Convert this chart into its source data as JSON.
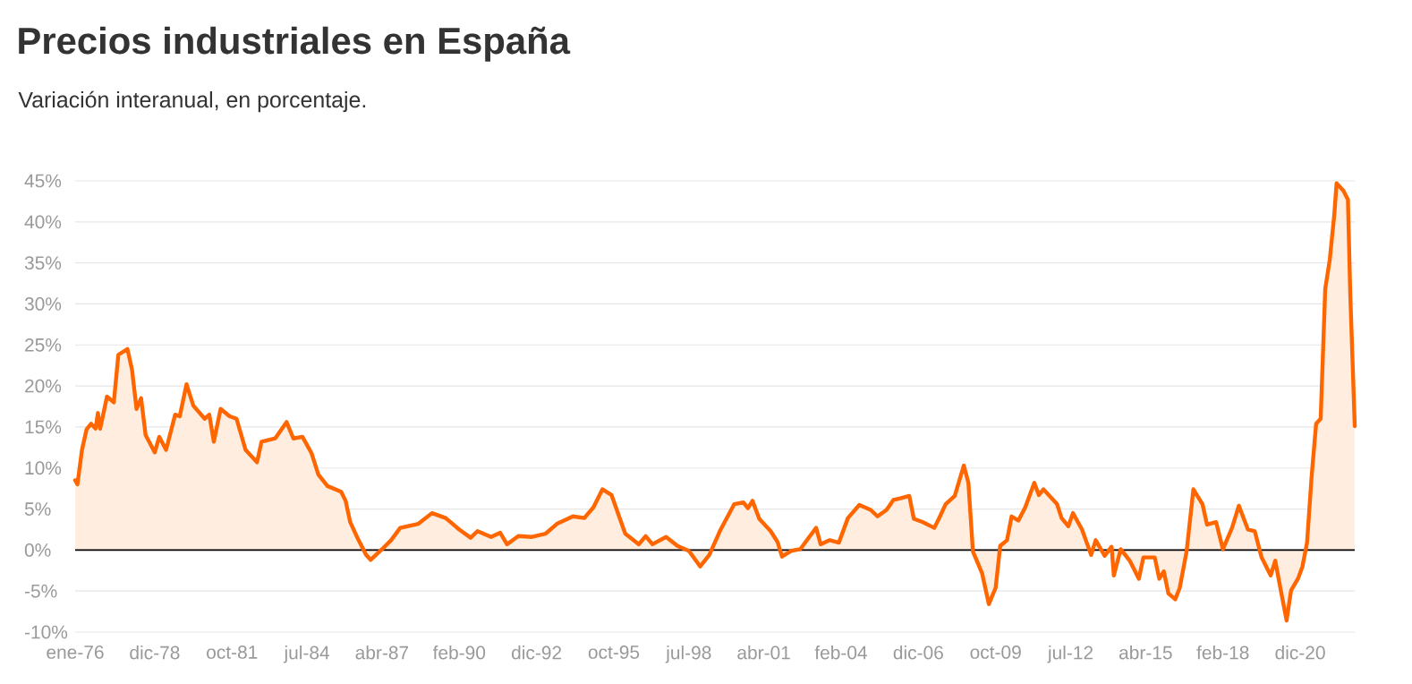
{
  "chart_data": {
    "type": "area",
    "title": "Precios industriales en España",
    "subtitle": "Variación interanual, en porcentaje.",
    "x": [
      "1976-01",
      "1976-02",
      "1976-04",
      "1976-06",
      "1976-08",
      "1976-10",
      "1976-11",
      "1976-12",
      "1977-03",
      "1977-06",
      "1977-08",
      "1977-12",
      "1978-02",
      "1978-04",
      "1978-06",
      "1978-08",
      "1978-12",
      "1979-02",
      "1979-05",
      "1979-09",
      "1979-11",
      "1980-02",
      "1980-05",
      "1980-10",
      "1980-12",
      "1981-02",
      "1981-05",
      "1981-09",
      "1981-12",
      "1982-04",
      "1982-09",
      "1982-11",
      "1983-05",
      "1983-10",
      "1984-01",
      "1984-05",
      "1984-09",
      "1984-12",
      "1985-04",
      "1985-10",
      "1985-12",
      "1986-02",
      "1986-05",
      "1986-09",
      "1986-11",
      "1987-04",
      "1987-08",
      "1987-12",
      "1988-08",
      "1989-02",
      "1989-08",
      "1990-02",
      "1990-07",
      "1990-10",
      "1991-04",
      "1991-08",
      "1991-11",
      "1992-04",
      "1992-10",
      "1993-04",
      "1993-09",
      "1994-04",
      "1994-09",
      "1995-01",
      "1995-05",
      "1995-09",
      "1996-03",
      "1996-09",
      "1996-12",
      "1997-03",
      "1997-09",
      "1998-02",
      "1998-07",
      "1998-12",
      "1999-04",
      "1999-09",
      "2000-03",
      "2000-07",
      "2000-09",
      "2000-11",
      "2001-02",
      "2001-07",
      "2001-10",
      "2001-12",
      "2002-04",
      "2002-08",
      "2002-12",
      "2003-03",
      "2003-05",
      "2003-09",
      "2004-01",
      "2004-05",
      "2004-10",
      "2005-03",
      "2005-06",
      "2005-10",
      "2006-01",
      "2006-04",
      "2006-08",
      "2006-10",
      "2007-02",
      "2007-07",
      "2007-09",
      "2007-12",
      "2008-04",
      "2008-08",
      "2008-10",
      "2008-12",
      "2009-04",
      "2009-07",
      "2009-10",
      "2009-12",
      "2010-03",
      "2010-05",
      "2010-08",
      "2010-11",
      "2011-03",
      "2011-05",
      "2011-07",
      "2012-01",
      "2012-03",
      "2012-06",
      "2012-08",
      "2012-12",
      "2013-04",
      "2013-06",
      "2013-10",
      "2014-01",
      "2014-02",
      "2014-05",
      "2014-09",
      "2015-01",
      "2015-03",
      "2015-08",
      "2015-10",
      "2015-12",
      "2016-02",
      "2016-05",
      "2016-07",
      "2016-10",
      "2017-01",
      "2017-05",
      "2017-07",
      "2017-11",
      "2018-02",
      "2018-06",
      "2018-09",
      "2019-01",
      "2019-04",
      "2019-07",
      "2019-11",
      "2020-01",
      "2020-04",
      "2020-06",
      "2020-08",
      "2020-11",
      "2021-01",
      "2021-03",
      "2021-05",
      "2021-07",
      "2021-09",
      "2021-11",
      "2022-01",
      "2022-03",
      "2022-04",
      "2022-07",
      "2022-09",
      "2022-10",
      "2022-12"
    ],
    "series": [
      {
        "color": "#ff6600",
        "values": [
          8.5,
          8.0,
          12.2,
          14.7,
          15.4,
          14.8,
          16.7,
          14.8,
          18.7,
          18.0,
          23.8,
          24.5,
          22.0,
          17.2,
          18.5,
          14.0,
          11.9,
          13.8,
          12.2,
          16.5,
          16.3,
          20.2,
          17.6,
          16.0,
          16.5,
          13.2,
          17.2,
          16.3,
          16.0,
          12.2,
          10.7,
          13.2,
          13.6,
          15.6,
          13.6,
          13.8,
          11.8,
          9.2,
          7.8,
          7.1,
          6.0,
          3.4,
          1.6,
          -0.6,
          -1.2,
          0.1,
          1.2,
          2.7,
          3.2,
          4.5,
          3.9,
          2.5,
          1.5,
          2.3,
          1.6,
          2.1,
          0.7,
          1.7,
          1.6,
          2.0,
          3.2,
          4.1,
          3.9,
          5.2,
          7.4,
          6.7,
          2.0,
          0.7,
          1.7,
          0.7,
          1.6,
          0.5,
          -0.1,
          -2.0,
          -0.6,
          2.5,
          5.6,
          5.8,
          5.1,
          6.0,
          3.8,
          2.3,
          1.0,
          -0.8,
          -0.1,
          0.1,
          1.6,
          2.7,
          0.7,
          1.2,
          0.9,
          3.9,
          5.5,
          4.9,
          4.1,
          4.9,
          6.1,
          6.3,
          6.6,
          3.8,
          3.4,
          2.7,
          3.8,
          5.6,
          6.6,
          10.3,
          8.2,
          -0.2,
          -2.8,
          -6.6,
          -4.6,
          0.5,
          1.2,
          4.1,
          3.6,
          5.2,
          8.2,
          6.7,
          7.4,
          5.6,
          3.9,
          2.9,
          4.5,
          2.5,
          -0.6,
          1.2,
          -0.7,
          0.4,
          -3.1,
          0.1,
          -1.3,
          -3.5,
          -0.9,
          -0.9,
          -3.5,
          -2.6,
          -5.3,
          -6.0,
          -4.6,
          -0.2,
          7.4,
          5.6,
          3.1,
          3.4,
          0.1,
          2.7,
          5.4,
          2.5,
          2.3,
          -0.9,
          -3.1,
          -1.3,
          -5.7,
          -8.6,
          -4.9,
          -3.5,
          -2.0,
          0.9,
          8.9,
          15.4,
          16.0,
          31.8,
          35.4,
          40.9,
          44.7,
          43.8,
          42.7,
          31.4,
          15.1
        ]
      }
    ],
    "xlim": [
      "1976-01",
      "2022-12"
    ],
    "xticks": [
      {
        "value": "1976-01",
        "label": "ene-76"
      },
      {
        "value": "1978-12",
        "label": "dic-78"
      },
      {
        "value": "1981-10",
        "label": "oct-81"
      },
      {
        "value": "1984-07",
        "label": "jul-84"
      },
      {
        "value": "1987-04",
        "label": "abr-87"
      },
      {
        "value": "1990-02",
        "label": "feb-90"
      },
      {
        "value": "1992-12",
        "label": "dic-92"
      },
      {
        "value": "1995-10",
        "label": "oct-95"
      },
      {
        "value": "1998-07",
        "label": "jul-98"
      },
      {
        "value": "2001-04",
        "label": "abr-01"
      },
      {
        "value": "2004-02",
        "label": "feb-04"
      },
      {
        "value": "2006-12",
        "label": "dic-06"
      },
      {
        "value": "2009-10",
        "label": "oct-09"
      },
      {
        "value": "2012-07",
        "label": "jul-12"
      },
      {
        "value": "2015-04",
        "label": "abr-15"
      },
      {
        "value": "2018-02",
        "label": "feb-18"
      },
      {
        "value": "2020-12",
        "label": "dic-20"
      }
    ],
    "ylim": [
      -10,
      45
    ],
    "yticks": [
      {
        "value": -10,
        "label": "-10%"
      },
      {
        "value": -5,
        "label": "-5%"
      },
      {
        "value": 0,
        "label": "0%"
      },
      {
        "value": 5,
        "label": "5%"
      },
      {
        "value": 10,
        "label": "10%"
      },
      {
        "value": 15,
        "label": "15%"
      },
      {
        "value": 20,
        "label": "20%"
      },
      {
        "value": 25,
        "label": "25%"
      },
      {
        "value": 30,
        "label": "30%"
      },
      {
        "value": 35,
        "label": "35%"
      },
      {
        "value": 40,
        "label": "40%"
      },
      {
        "value": 45,
        "label": "45%"
      }
    ],
    "ref_lines": [
      {
        "axis": "y",
        "value": 0,
        "color": "#000000"
      }
    ],
    "grid": "y"
  }
}
